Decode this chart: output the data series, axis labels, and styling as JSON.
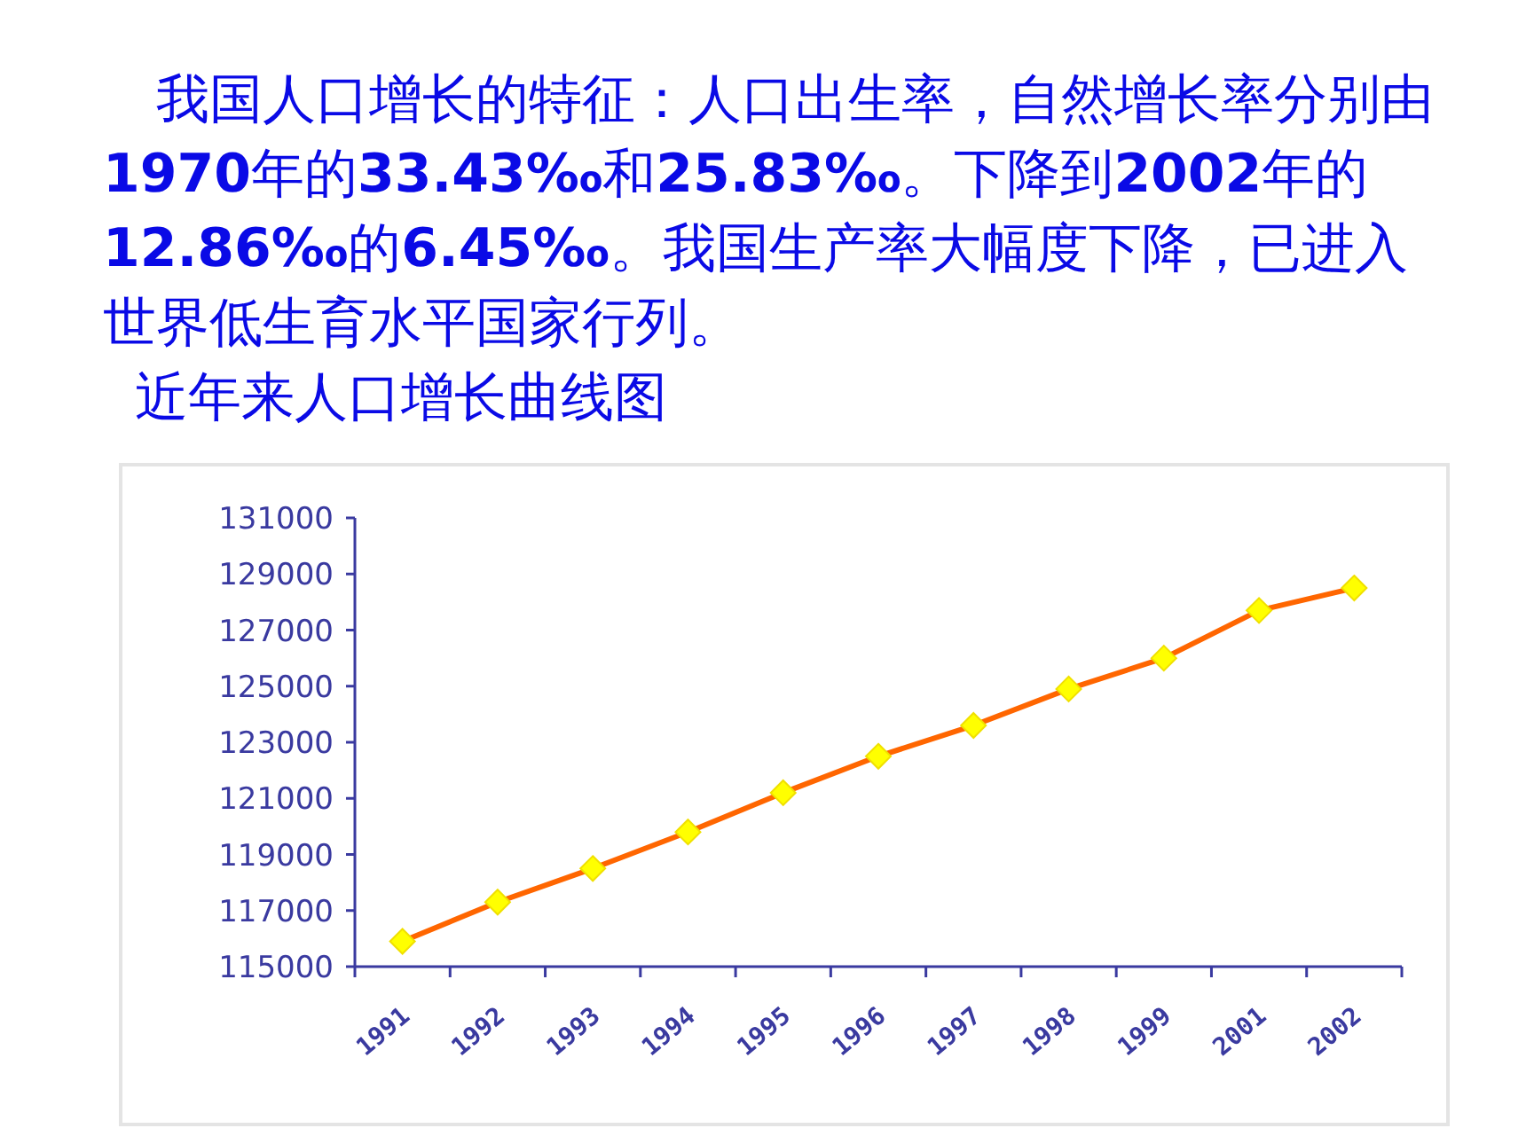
{
  "chart_data": {
    "type": "line",
    "title": "近年来人口增长曲线图",
    "annotations": [
      "我国人口增长的特征：人口出生率，自然增长率分别由**1970**年的**33.43‰**和**25.83‰**。下降到**2002**年的**12.86‰**的**6.45‰**。我国生产率大幅度下降，已进入世界低生育水平国家行列。"
    ],
    "categories": [
      "1991",
      "1992",
      "1993",
      "1994",
      "1995",
      "1996",
      "1997",
      "1998",
      "1999",
      "2001",
      "2002"
    ],
    "series": [
      {
        "color": "#ff6600",
        "values": [
          115900,
          117300,
          118500,
          119800,
          121200,
          122500,
          123600,
          124900,
          126000,
          127700,
          128500
        ]
      }
    ],
    "ylim": [
      115000,
      131000
    ],
    "yticks": [
      115000,
      117000,
      119000,
      121000,
      123000,
      125000,
      127000,
      129000,
      131000
    ],
    "marker": "diamond",
    "line_style": "solid"
  }
}
